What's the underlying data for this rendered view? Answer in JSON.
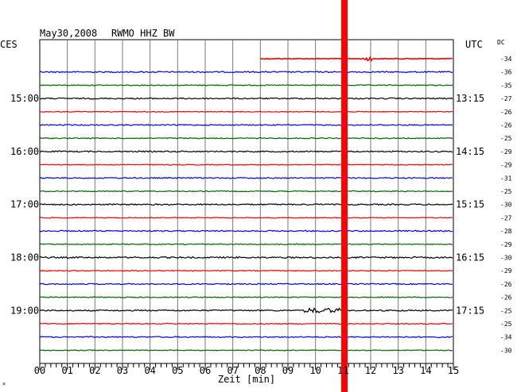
{
  "header": {
    "date": "May30,2008",
    "station": "RWMO HHZ BW",
    "left_zone": "CES",
    "right_zone": "UTC",
    "dc_label": "DC"
  },
  "chart_data": {
    "type": "line",
    "title": "May30,2008  RWMO HHZ BW",
    "xlabel": "Zeit [min]",
    "xlim": [
      0,
      15
    ],
    "x_ticks": [
      "00",
      "01",
      "02",
      "03",
      "04",
      "05",
      "06",
      "07",
      "08",
      "09",
      "10",
      "11",
      "12",
      "13",
      "14",
      "15"
    ],
    "grid": true,
    "trace_colors": [
      "#ff0000",
      "#0000ff",
      "#006400",
      "#000000"
    ],
    "left_time_labels": [
      {
        "row": 3,
        "label": "15:00"
      },
      {
        "row": 7,
        "label": "16:00"
      },
      {
        "row": 11,
        "label": "17:00"
      },
      {
        "row": 15,
        "label": "18:00"
      },
      {
        "row": 19,
        "label": "19:00"
      }
    ],
    "right_time_labels": [
      {
        "row": 3,
        "label": "13:15"
      },
      {
        "row": 7,
        "label": "14:15"
      },
      {
        "row": 11,
        "label": "15:15"
      },
      {
        "row": 15,
        "label": "16:15"
      },
      {
        "row": 19,
        "label": "17:15"
      }
    ],
    "dc_offsets": [
      "-34",
      "-36",
      "-35",
      "-27",
      "-26",
      "-26",
      "-25",
      "-29",
      "-29",
      "-31",
      "-25",
      "-30",
      "-27",
      "-28",
      "-29",
      "-30",
      "-29",
      "-26",
      "-26",
      "-25",
      "-25",
      "-34",
      "-30"
    ],
    "traces": [
      {
        "color": "#ff0000",
        "x_start": 8.0,
        "noise": 0.5
      },
      {
        "color": "#0000ff",
        "x_start": 0,
        "noise": 0.8
      },
      {
        "color": "#006400",
        "x_start": 0,
        "noise": 0.6
      },
      {
        "color": "#000000",
        "x_start": 0,
        "noise": 0.8
      },
      {
        "color": "#ff0000",
        "x_start": 0,
        "noise": 0.5
      },
      {
        "color": "#0000ff",
        "x_start": 0,
        "noise": 0.7
      },
      {
        "color": "#006400",
        "x_start": 0,
        "noise": 0.6
      },
      {
        "color": "#000000",
        "x_start": 0,
        "noise": 0.8
      },
      {
        "color": "#ff0000",
        "x_start": 0,
        "noise": 0.5
      },
      {
        "color": "#0000ff",
        "x_start": 0,
        "noise": 0.7
      },
      {
        "color": "#006400",
        "x_start": 0,
        "noise": 0.6
      },
      {
        "color": "#000000",
        "x_start": 0,
        "noise": 0.8
      },
      {
        "color": "#ff0000",
        "x_start": 0,
        "noise": 0.5
      },
      {
        "color": "#0000ff",
        "x_start": 0,
        "noise": 0.8
      },
      {
        "color": "#006400",
        "x_start": 0,
        "noise": 0.6
      },
      {
        "color": "#000000",
        "x_start": 0,
        "noise": 0.9
      },
      {
        "color": "#ff0000",
        "x_start": 0,
        "noise": 0.6
      },
      {
        "color": "#0000ff",
        "x_start": 0,
        "noise": 0.7
      },
      {
        "color": "#006400",
        "x_start": 0,
        "noise": 0.6
      },
      {
        "color": "#000000",
        "x_start": 0,
        "noise": 0.8
      },
      {
        "color": "#ff0000",
        "x_start": 0,
        "noise": 0.6
      },
      {
        "color": "#0000ff",
        "x_start": 0,
        "noise": 0.7
      },
      {
        "color": "#006400",
        "x_start": 0,
        "noise": 0.5
      }
    ],
    "events": [
      {
        "type": "saturated_band",
        "x": 11.05,
        "color": "#ff0000"
      },
      {
        "type": "burst",
        "row": 19,
        "x_from": 9.6,
        "x_to": 10.9,
        "amplitude": 3
      },
      {
        "type": "burst",
        "row": 0,
        "x_from": 11.8,
        "x_to": 12.05,
        "amplitude": 4
      }
    ]
  }
}
